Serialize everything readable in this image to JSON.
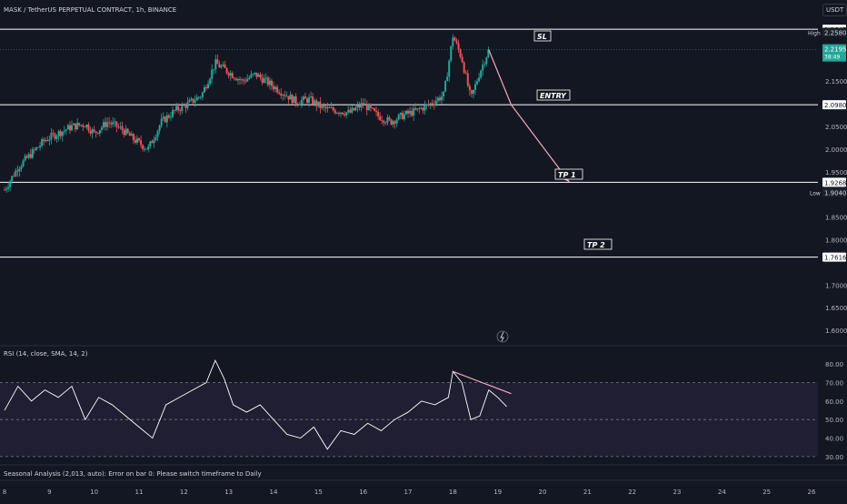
{
  "header": {
    "symbol_title": "MASK / TetherUS PERPETUAL CONTRACT, 1h, BINANCE",
    "currency_button": "USDT"
  },
  "price_scale": {
    "ticks": [
      "2.1500",
      "2.0500",
      "2.0000",
      "1.9500",
      "1.8500",
      "1.8000",
      "1.7000",
      "1.6500",
      "1.6000"
    ],
    "tick_values": [
      2.15,
      2.05,
      2.0,
      1.95,
      1.85,
      1.8,
      1.7,
      1.65,
      1.6
    ],
    "high_label": "High",
    "high_value": "2.2580",
    "low_label": "Low",
    "low_value": "1.9040",
    "last_price": "2.2195",
    "countdown": "38:49"
  },
  "levels": [
    {
      "name": "SL",
      "price": 2.2647,
      "label": "2.2647",
      "color": "#ffffff"
    },
    {
      "name": "ENTRY",
      "price": 2.098,
      "label": "2.0980",
      "color": "#ffffff"
    },
    {
      "name": "TP 1",
      "price": 1.9268,
      "label": "1.9268",
      "color": "#ffffff"
    },
    {
      "name": "TP 2",
      "price": 1.7616,
      "label": "1.7616",
      "color": "#ffffff"
    }
  ],
  "rsi": {
    "title": "RSI (14, close, SMA, 14, 2)",
    "ticks": [
      "80.00",
      "70.00",
      "60.00",
      "50.00",
      "40.00",
      "30.00"
    ],
    "tick_values": [
      80,
      70,
      60,
      50,
      40,
      30
    ],
    "band_upper": 70,
    "band_mid": 50,
    "band_lower": 30
  },
  "footer": {
    "seasonal_error": "Seasonal Analysis (2,013, auto): Error on bar 0: Please switch timeframe to Daily"
  },
  "time_axis": {
    "labels": [
      "8",
      "9",
      "10",
      "11",
      "12",
      "13",
      "14",
      "15",
      "16",
      "17",
      "18",
      "19",
      "20",
      "21",
      "22",
      "23",
      "24",
      "25",
      "26"
    ]
  },
  "colors": {
    "background": "#131722",
    "up_candle": "#26a69a",
    "down_candle": "#ef5350",
    "rsi_line": "#ffffff",
    "rsi_band_fill": "#2a2440",
    "projection": "#f7a8b8",
    "divergence_line": "#f7a8b8"
  },
  "chart_data": {
    "type": "candlestick",
    "title": "MASK / TetherUS PERPETUAL CONTRACT, 1h, BINANCE",
    "y_range": [
      1.57,
      2.285
    ],
    "x_labels": [
      "8",
      "9",
      "10",
      "11",
      "12",
      "13",
      "14",
      "15",
      "16",
      "17",
      "18",
      "19",
      "20",
      "21",
      "22",
      "23",
      "24",
      "25",
      "26"
    ],
    "close_path": [
      [
        8.0,
        1.91
      ],
      [
        8.3,
        1.96
      ],
      [
        8.6,
        1.99
      ],
      [
        8.9,
        2.02
      ],
      [
        9.2,
        2.035
      ],
      [
        9.5,
        2.05
      ],
      [
        9.8,
        2.055
      ],
      [
        10.0,
        2.035
      ],
      [
        10.3,
        2.06
      ],
      [
        10.6,
        2.045
      ],
      [
        10.9,
        2.02
      ],
      [
        11.2,
        2.0
      ],
      [
        11.5,
        2.06
      ],
      [
        11.8,
        2.085
      ],
      [
        12.1,
        2.1
      ],
      [
        12.4,
        2.12
      ],
      [
        12.7,
        2.19
      ],
      [
        13.0,
        2.17
      ],
      [
        13.3,
        2.15
      ],
      [
        13.6,
        2.165
      ],
      [
        13.9,
        2.145
      ],
      [
        14.2,
        2.125
      ],
      [
        14.5,
        2.105
      ],
      [
        14.8,
        2.11
      ],
      [
        15.1,
        2.09
      ],
      [
        15.4,
        2.085
      ],
      [
        15.7,
        2.08
      ],
      [
        16.0,
        2.1
      ],
      [
        16.3,
        2.075
      ],
      [
        16.6,
        2.06
      ],
      [
        16.9,
        2.075
      ],
      [
        17.2,
        2.085
      ],
      [
        17.5,
        2.1
      ],
      [
        17.8,
        2.12
      ],
      [
        18.0,
        2.25
      ],
      [
        18.2,
        2.2
      ],
      [
        18.4,
        2.11
      ],
      [
        18.6,
        2.17
      ],
      [
        18.8,
        2.2195
      ]
    ],
    "projection_path": [
      [
        18.8,
        2.2195
      ],
      [
        19.3,
        2.098
      ],
      [
        20.6,
        1.927
      ]
    ],
    "rsi_series": [
      [
        8.0,
        55
      ],
      [
        8.3,
        68
      ],
      [
        8.6,
        60
      ],
      [
        8.9,
        66
      ],
      [
        9.2,
        62
      ],
      [
        9.5,
        68
      ],
      [
        9.8,
        50
      ],
      [
        10.1,
        62
      ],
      [
        10.4,
        58
      ],
      [
        10.7,
        52
      ],
      [
        11.0,
        46
      ],
      [
        11.3,
        40
      ],
      [
        11.6,
        58
      ],
      [
        11.9,
        62
      ],
      [
        12.2,
        66
      ],
      [
        12.5,
        70
      ],
      [
        12.7,
        82
      ],
      [
        12.9,
        72
      ],
      [
        13.1,
        58
      ],
      [
        13.4,
        54
      ],
      [
        13.7,
        58
      ],
      [
        14.0,
        50
      ],
      [
        14.3,
        42
      ],
      [
        14.6,
        40
      ],
      [
        14.9,
        46
      ],
      [
        15.2,
        34
      ],
      [
        15.5,
        44
      ],
      [
        15.8,
        42
      ],
      [
        16.1,
        48
      ],
      [
        16.4,
        44
      ],
      [
        16.7,
        50
      ],
      [
        17.0,
        54
      ],
      [
        17.3,
        60
      ],
      [
        17.6,
        58
      ],
      [
        17.9,
        62
      ],
      [
        18.0,
        76
      ],
      [
        18.2,
        70
      ],
      [
        18.4,
        50
      ],
      [
        18.6,
        52
      ],
      [
        18.8,
        66
      ],
      [
        19.0,
        62
      ],
      [
        19.2,
        57
      ]
    ],
    "rsi_divergence_line": [
      [
        18.0,
        76
      ],
      [
        19.3,
        64
      ]
    ]
  }
}
